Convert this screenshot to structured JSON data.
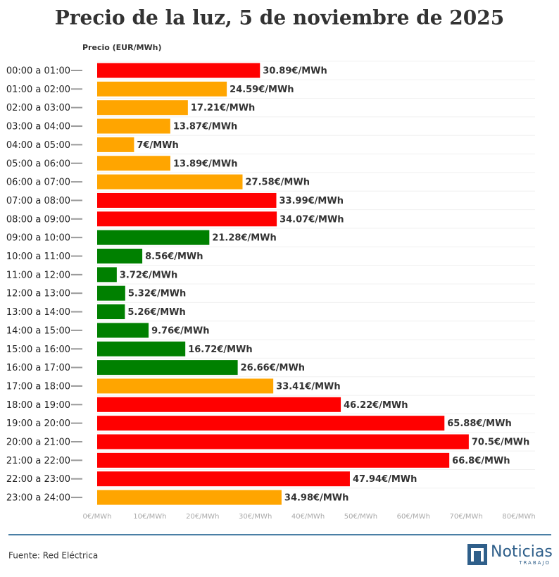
{
  "chart_data": {
    "type": "barh",
    "title": "Precio de la luz, 5 de noviembre de 2025",
    "xlabel": "Precio (EUR/MWh)",
    "categories": [
      "00:00 a 01:00",
      "01:00 a 02:00",
      "02:00 a 03:00",
      "03:00 a 04:00",
      "04:00 a 05:00",
      "05:00 a 06:00",
      "06:00 a 07:00",
      "07:00 a 08:00",
      "08:00 a 09:00",
      "09:00 a 10:00",
      "10:00 a 11:00",
      "11:00 a 12:00",
      "12:00 a 13:00",
      "13:00 a 14:00",
      "14:00 a 15:00",
      "15:00 a 16:00",
      "16:00 a 17:00",
      "17:00 a 18:00",
      "18:00 a 19:00",
      "19:00 a 20:00",
      "20:00 a 21:00",
      "21:00 a 22:00",
      "22:00 a 23:00",
      "23:00 a 24:00"
    ],
    "values": [
      30.89,
      24.59,
      17.21,
      13.87,
      7,
      13.89,
      27.58,
      33.99,
      34.07,
      21.28,
      8.56,
      3.72,
      5.32,
      5.26,
      9.76,
      16.72,
      26.66,
      33.41,
      46.22,
      65.88,
      70.5,
      66.8,
      47.94,
      34.98
    ],
    "value_labels": [
      "30.89€/MWh",
      "24.59€/MWh",
      "17.21€/MWh",
      "13.87€/MWh",
      "7€/MWh",
      "13.89€/MWh",
      "27.58€/MWh",
      "33.99€/MWh",
      "34.07€/MWh",
      "21.28€/MWh",
      "8.56€/MWh",
      "3.72€/MWh",
      "5.32€/MWh",
      "5.26€/MWh",
      "9.76€/MWh",
      "16.72€/MWh",
      "26.66€/MWh",
      "33.41€/MWh",
      "46.22€/MWh",
      "65.88€/MWh",
      "70.5€/MWh",
      "66.8€/MWh",
      "47.94€/MWh",
      "34.98€/MWh"
    ],
    "colors": [
      "#ff0000",
      "#ffa500",
      "#ffa500",
      "#ffa500",
      "#ffa500",
      "#ffa500",
      "#ffa500",
      "#ff0000",
      "#ff0000",
      "#008000",
      "#008000",
      "#008000",
      "#008000",
      "#008000",
      "#008000",
      "#008000",
      "#008000",
      "#ffa500",
      "#ff0000",
      "#ff0000",
      "#ff0000",
      "#ff0000",
      "#ff0000",
      "#ffa500"
    ],
    "xlim": [
      0,
      80
    ],
    "xticks": [
      {
        "value": 0,
        "label": "0€/MWh"
      },
      {
        "value": 10,
        "label": "10€/MWh"
      },
      {
        "value": 20,
        "label": "20€/MWh"
      },
      {
        "value": 30,
        "label": "30€/MWh"
      },
      {
        "value": 40,
        "label": "40€/MWh"
      },
      {
        "value": 50,
        "label": "50€/MWh"
      },
      {
        "value": 60,
        "label": "60€/MWh"
      },
      {
        "value": 70,
        "label": "70€/MWh"
      },
      {
        "value": 80,
        "label": "80€/MWh"
      }
    ],
    "grid": false
  },
  "footer": {
    "source": "Fuente: Red Eléctrica",
    "logo": "Noticias",
    "logo_sub": "TRABAJO"
  }
}
